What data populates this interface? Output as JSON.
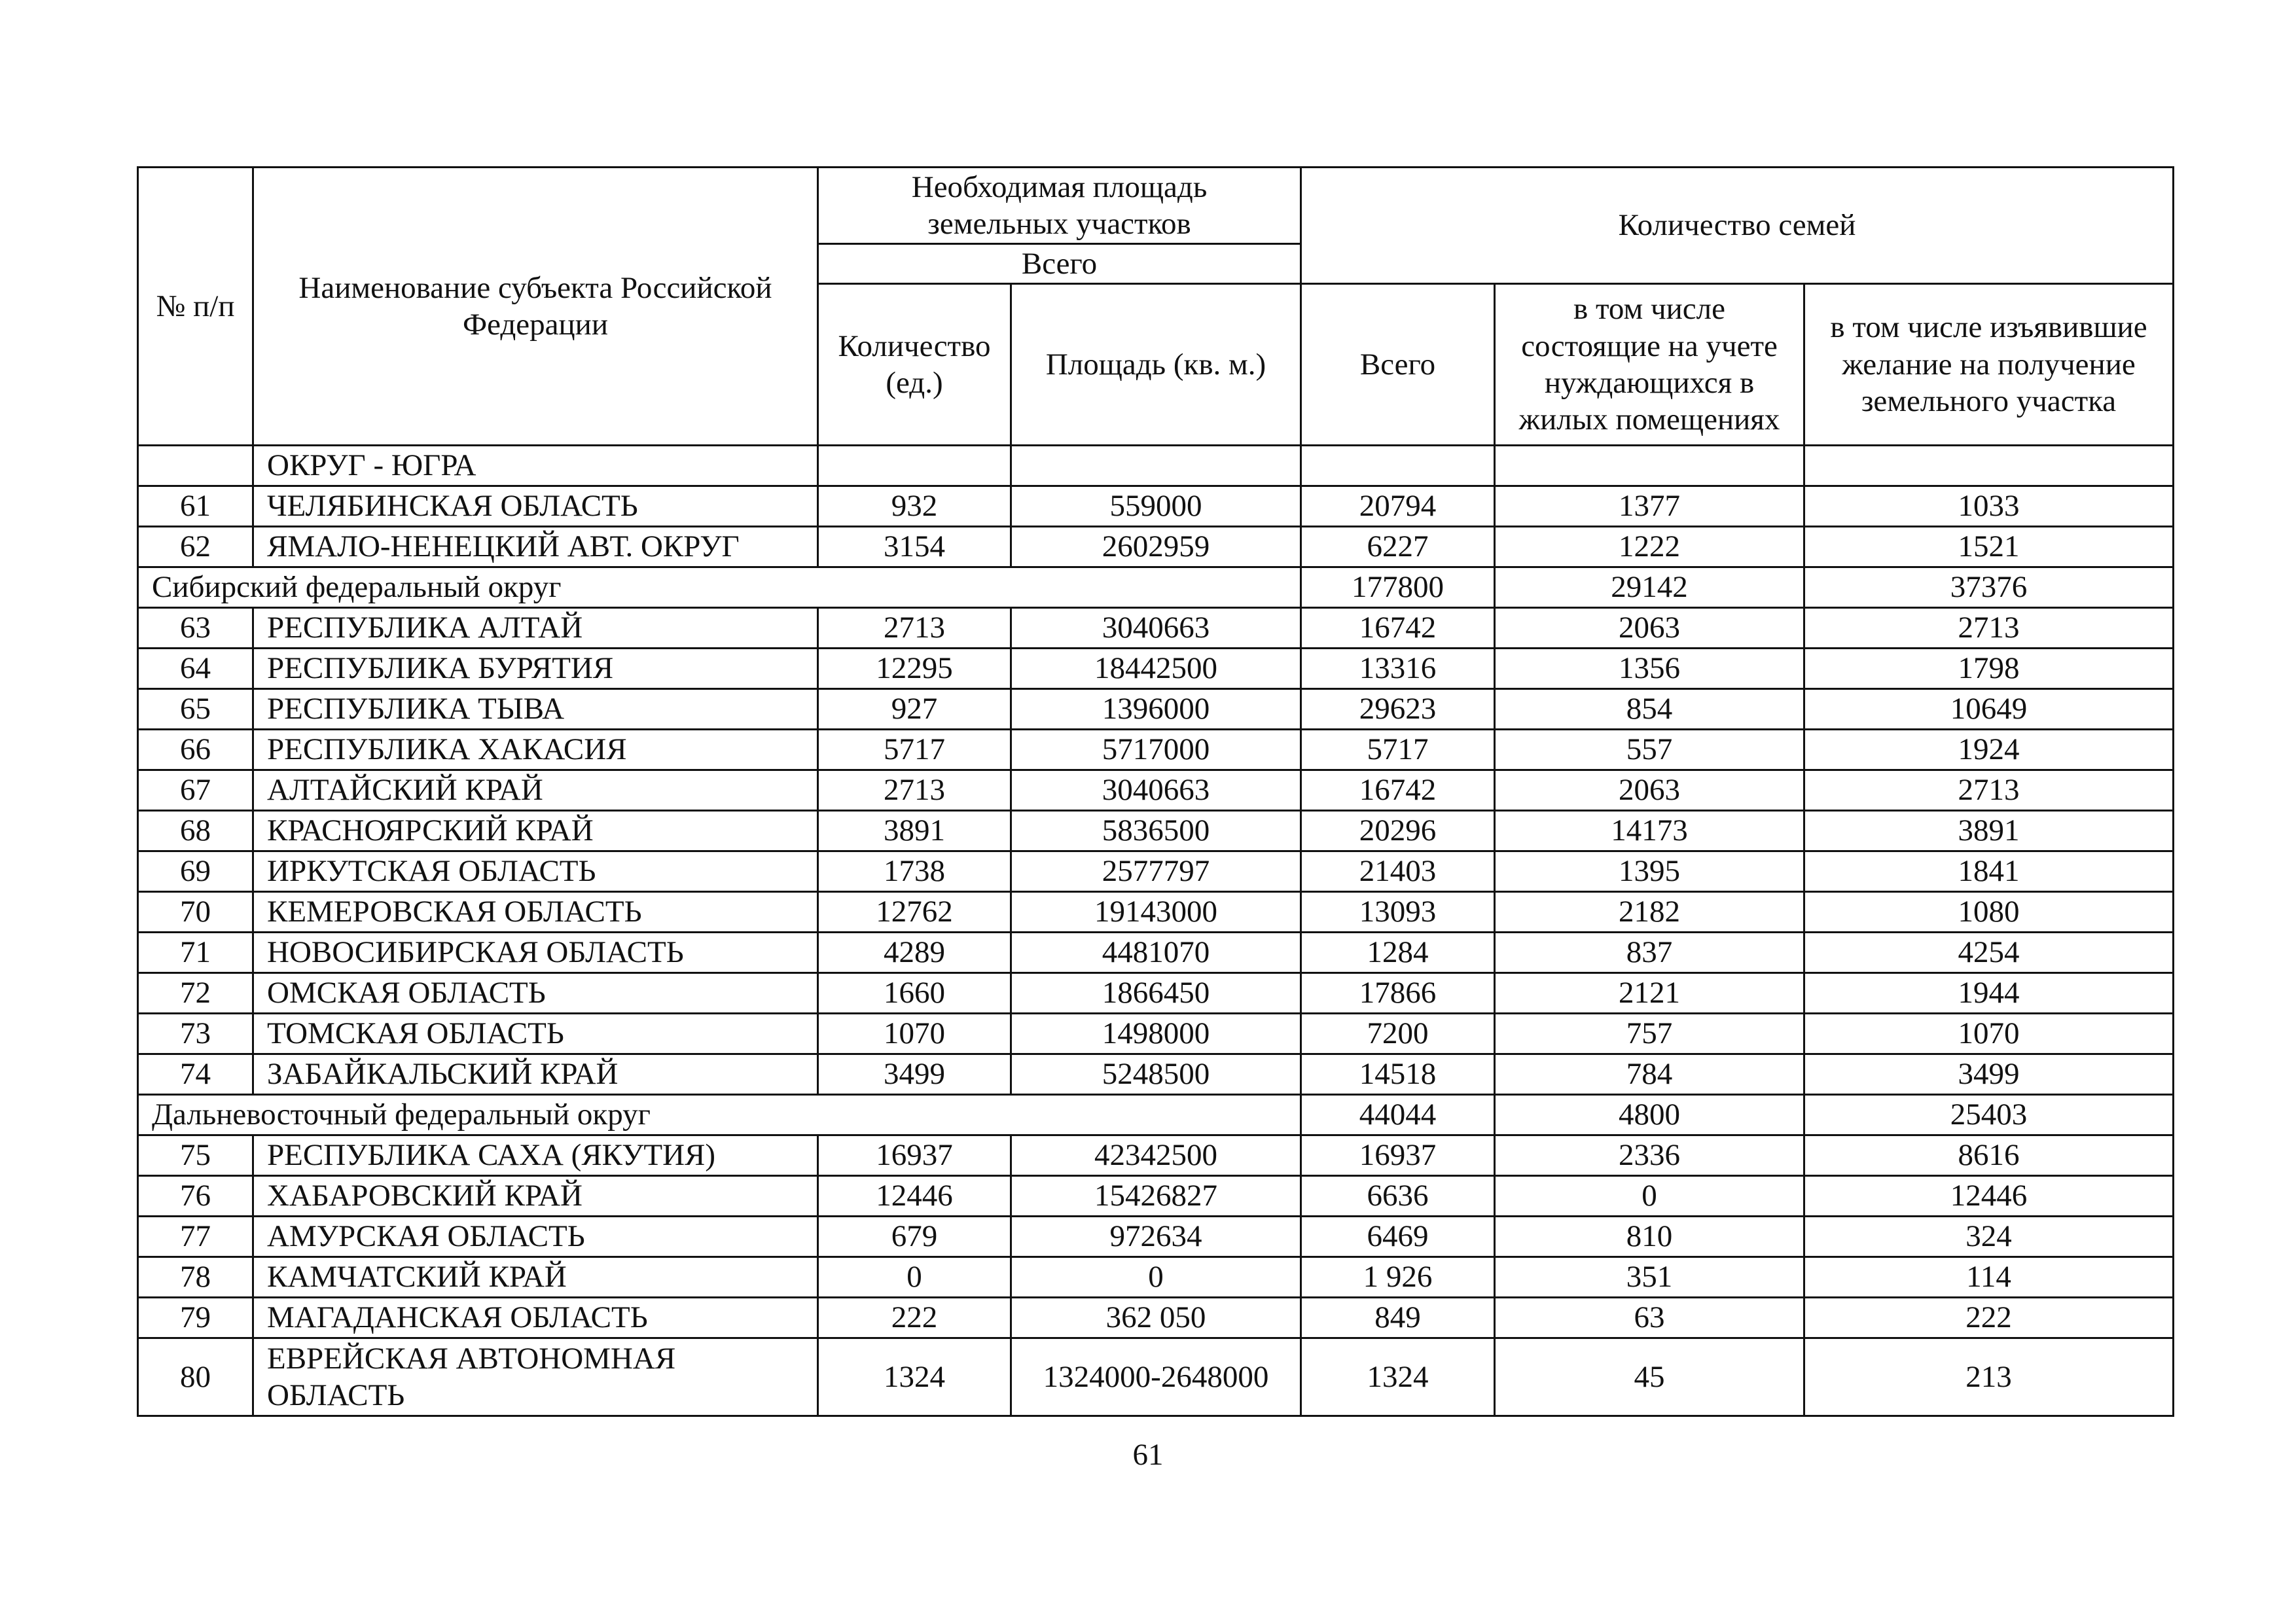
{
  "table": {
    "header": {
      "number": "№ п/п",
      "name": "Наименование субъекта Российской Федерации",
      "area_group": "Необходимая площадь земельных участков",
      "area_total": "Всего",
      "count": "Количество (ед.)",
      "area": "Площадь (кв. м.)",
      "families": "Количество семей",
      "families_total": "Всего",
      "registered": "в том числе состоящие на учете нуждающихся в жилых помещениях",
      "wishing": "в том числе изъявившие желание на получение земельного участка"
    },
    "rows": [
      {
        "name": "ОКРУГ - ЮГРА"
      },
      {
        "number": "61",
        "name": "ЧЕЛЯБИНСКАЯ ОБЛАСТЬ",
        "count": "932",
        "area": "559000",
        "families_total": "20794",
        "registered": "1377",
        "wishing": "1033"
      },
      {
        "number": "62",
        "name": "ЯМАЛО-НЕНЕЦКИЙ АВТ. ОКРУГ",
        "count": "3154",
        "area": "2602959",
        "families_total": "6227",
        "registered": "1222",
        "wishing": "1521"
      },
      {
        "group": "Сибирский федеральный округ",
        "families_total": "177800",
        "registered": "29142",
        "wishing": "37376"
      },
      {
        "number": "63",
        "name": "РЕСПУБЛИКА АЛТАЙ",
        "count": "2713",
        "area": "3040663",
        "families_total": "16742",
        "registered": "2063",
        "wishing": "2713"
      },
      {
        "number": "64",
        "name": "РЕСПУБЛИКА БУРЯТИЯ",
        "count": "12295",
        "area": "18442500",
        "families_total": "13316",
        "registered": "1356",
        "wishing": "1798"
      },
      {
        "number": "65",
        "name": "РЕСПУБЛИКА ТЫВА",
        "count": "927",
        "area": "1396000",
        "families_total": "29623",
        "registered": "854",
        "wishing": "10649"
      },
      {
        "number": "66",
        "name": "РЕСПУБЛИКА ХАКАСИЯ",
        "count": "5717",
        "area": "5717000",
        "families_total": "5717",
        "registered": "557",
        "wishing": "1924"
      },
      {
        "number": "67",
        "name": "АЛТАЙСКИЙ КРАЙ",
        "count": "2713",
        "area": "3040663",
        "families_total": "16742",
        "registered": "2063",
        "wishing": "2713"
      },
      {
        "number": "68",
        "name": "КРАСНОЯРСКИЙ КРАЙ",
        "count": "3891",
        "area": "5836500",
        "families_total": "20296",
        "registered": "14173",
        "wishing": "3891"
      },
      {
        "number": "69",
        "name": "ИРКУТСКАЯ ОБЛАСТЬ",
        "count": "1738",
        "area": "2577797",
        "families_total": "21403",
        "registered": "1395",
        "wishing": "1841"
      },
      {
        "number": "70",
        "name": "КЕМЕРОВСКАЯ ОБЛАСТЬ",
        "count": "12762",
        "area": "19143000",
        "families_total": "13093",
        "registered": "2182",
        "wishing": "1080"
      },
      {
        "number": "71",
        "name": "НОВОСИБИРСКАЯ ОБЛАСТЬ",
        "count": "4289",
        "area": "4481070",
        "families_total": "1284",
        "registered": "837",
        "wishing": "4254"
      },
      {
        "number": "72",
        "name": "ОМСКАЯ ОБЛАСТЬ",
        "count": "1660",
        "area": "1866450",
        "families_total": "17866",
        "registered": "2121",
        "wishing": "1944"
      },
      {
        "number": "73",
        "name": "ТОМСКАЯ ОБЛАСТЬ",
        "count": "1070",
        "area": "1498000",
        "families_total": "7200",
        "registered": "757",
        "wishing": "1070"
      },
      {
        "number": "74",
        "name": "ЗАБАЙКАЛЬСКИЙ КРАЙ",
        "count": "3499",
        "area": "5248500",
        "families_total": "14518",
        "registered": "784",
        "wishing": "3499"
      },
      {
        "group": "Дальневосточный федеральный округ",
        "families_total": "44044",
        "registered": "4800",
        "wishing": "25403"
      },
      {
        "number": "75",
        "name": "РЕСПУБЛИКА САХА (ЯКУТИЯ)",
        "count": "16937",
        "area": "42342500",
        "families_total": "16937",
        "registered": "2336",
        "wishing": "8616"
      },
      {
        "number": "76",
        "name": "ХАБАРОВСКИЙ КРАЙ",
        "count": "12446",
        "area": "15426827",
        "families_total": "6636",
        "registered": "0",
        "wishing": "12446"
      },
      {
        "number": "77",
        "name": "АМУРСКАЯ ОБЛАСТЬ",
        "count": "679",
        "area": "972634",
        "families_total": "6469",
        "registered": "810",
        "wishing": "324"
      },
      {
        "number": "78",
        "name": "КАМЧАТСКИЙ КРАЙ",
        "count": "0",
        "area": "0",
        "families_total": "1 926",
        "registered": "351",
        "wishing": "114"
      },
      {
        "number": "79",
        "name": "МАГАДАНСКАЯ ОБЛАСТЬ",
        "count": "222",
        "area": "362 050",
        "families_total": "849",
        "registered": "63",
        "wishing": "222"
      },
      {
        "number": "80",
        "name": "ЕВРЕЙСКАЯ АВТОНОМНАЯ ОБЛАСТЬ",
        "count": "1324",
        "area": "1324000-2648000",
        "families_total": "1324",
        "registered": "45",
        "wishing": "213"
      }
    ]
  },
  "page_number": "61"
}
